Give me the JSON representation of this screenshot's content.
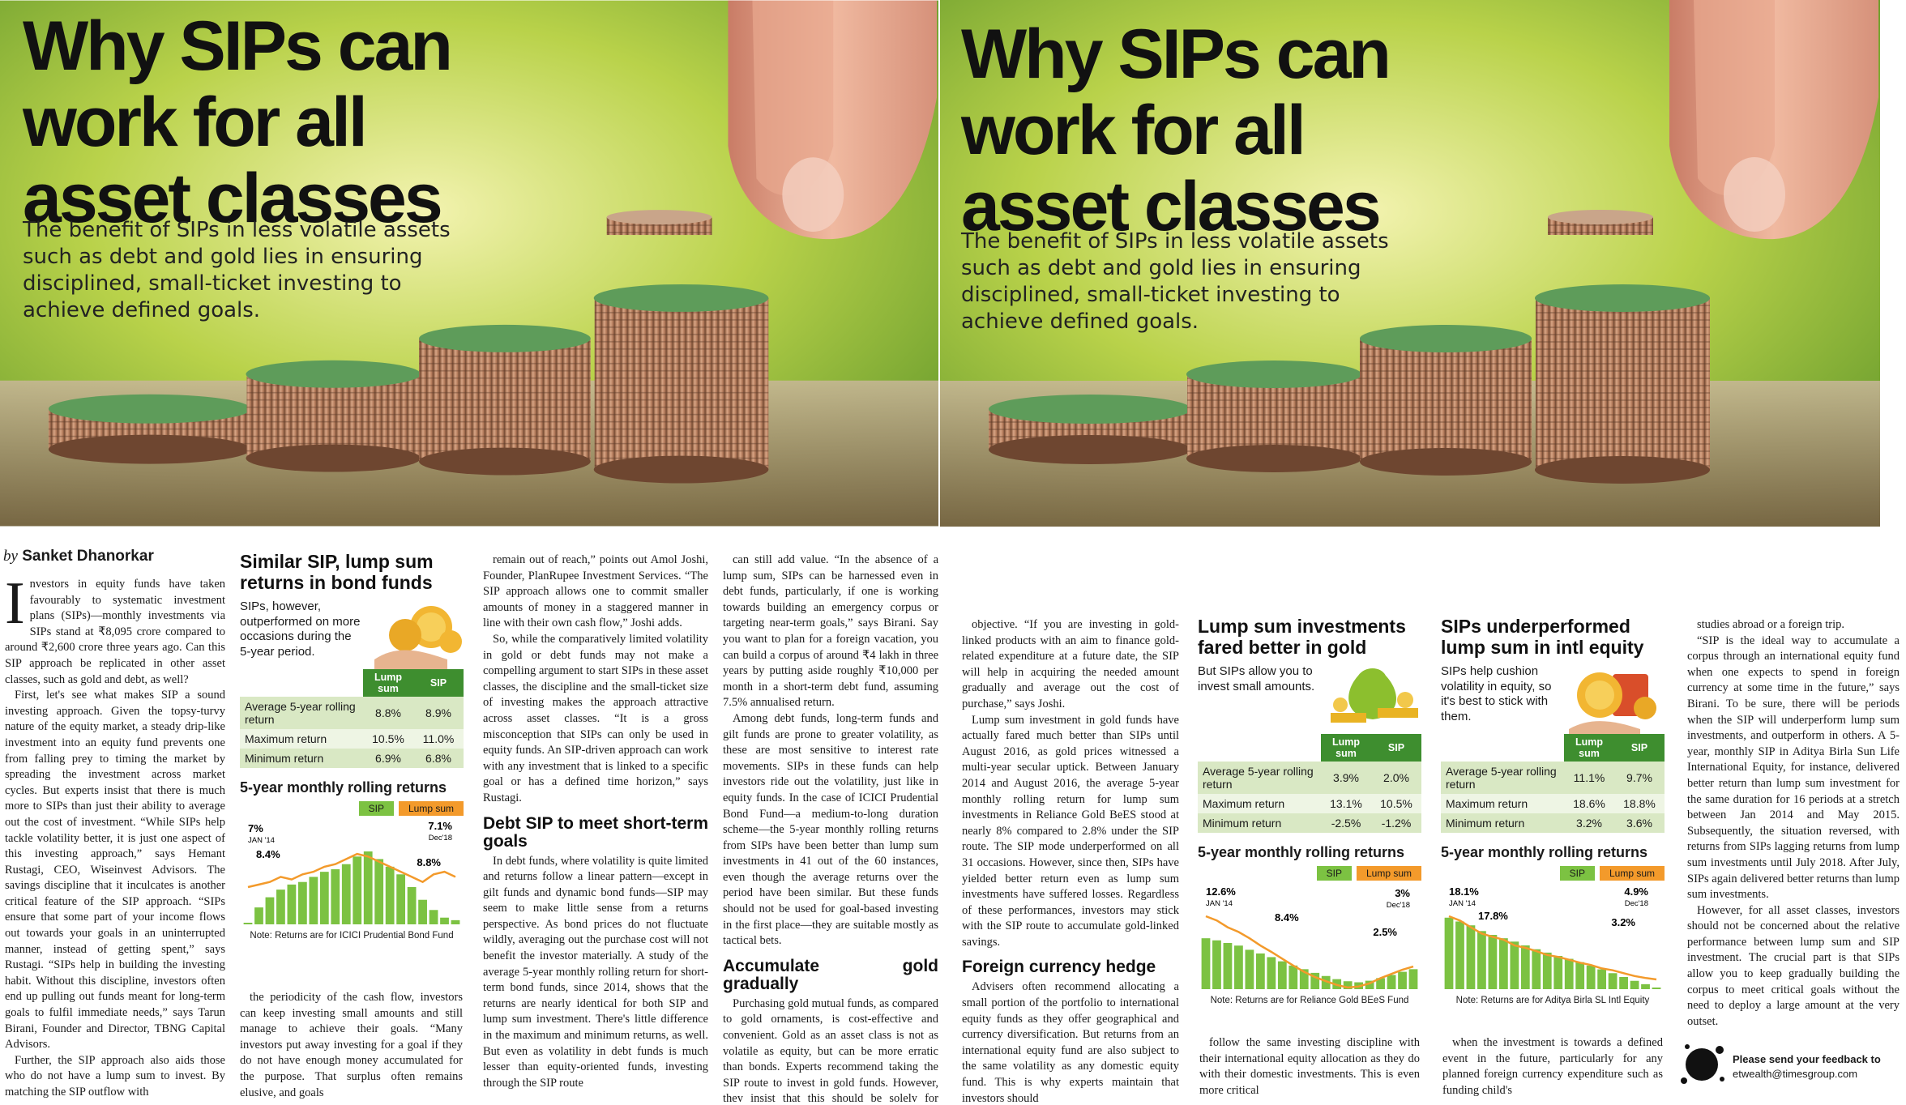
{
  "left_page": {
    "title": "Why SIPs can work for all asset classes",
    "subtitle": "The benefit of SIPs in less volatile assets such as debt and gold lies in ensuring disciplined, small-ticket investing to achieve defined goals.",
    "byline_prefix": "by",
    "author": "Sanket Dhanorkar",
    "columns": [
      [
        {
          "text": "Investors in equity funds have taken favourably to systematic investment plans (SIPs)—monthly investments via SIPs stand at ₹8,095 crore compared to around ₹2,600 crore three years ago. Can this SIP approach be replicated in other asset classes, such as gold and debt, as well?"
        },
        {
          "text": "First, let's see what makes SIP a sound investing approach. Given the topsy-turvy nature of the equity market, a steady drip-like investment into an equity fund prevents one from falling prey to timing the market by spreading the investment across market cycles. But experts insist that there is much more to SIPs than just their ability to average out the cost of investment. “While SIPs help tackle volatility better, it is just one aspect of this investing approach,” says Hemant Rustagi, CEO, Wiseinvest Advisors. The savings discipline that it inculcates is another critical feature of the SIP approach. “SIPs ensure that some part of your income flows out towards your goals in an uninterrupted manner, instead of getting spent,” says Rustagi. “SIPs help in building the investing habit. Without this discipline, investors often end up pulling out funds meant for long-term goals to fulfil immediate needs,” says Tarun Birani, Founder and Director, TBNG Capital Advisors."
        },
        {
          "text": "Further, the SIP approach also aids those who do not have a lump sum to invest. By matching the SIP outflow with"
        }
      ],
      [
        {
          "text": "the periodicity of the cash flow, investors can keep investing small amounts and still manage to achieve their goals. “Many investors put away investing for a goal if they do not have enough money accumulated for the purpose. That surplus often remains elusive, and goals"
        }
      ],
      [
        {
          "text": "remain out of reach,” points out Amol Joshi, Founder, PlanRupee Investment Services. “The SIP approach allows one to commit smaller amounts of money in a staggered manner in line with their own cash flow,” Joshi adds."
        },
        {
          "text": "So, while the comparatively limited volatility in gold or debt funds may not make a compelling argument to start SIPs in these asset classes, the discipline and the small-ticket size of investing makes the approach attractive across asset classes. “It is a gross misconception that SIPs can only be used in equity funds. An SIP-driven approach can work with any investment that is linked to a specific goal or has a defined time horizon,” says Rustagi."
        },
        {
          "heading": "Debt SIP to meet short-term goals"
        },
        {
          "text": "In debt funds, where volatility is quite limited and returns follow a linear pattern—except in gilt funds and dynamic bond funds—SIP may seem to make little sense from a returns perspective. As bond prices do not fluctuate wildly, averaging out the purchase cost will not benefit the investor materially. A study of the average 5-year monthly rolling return for short-term bond funds, since 2014, shows that the returns are nearly identical for both SIP and lump sum investment. There's little difference in the maximum and minimum returns, as well. But even as volatility in debt funds is much lesser than equity-oriented funds, investing through the SIP route"
        }
      ],
      [
        {
          "text": "can still add value. “In the absence of a lump sum, SIPs can be harnessed even in debt funds, particularly, if one is working towards building an emergency corpus or targeting near-term goals,” says Birani. Say you want to plan for a foreign vacation, you can build a corpus of around ₹4 lakh in three years by putting aside roughly ₹10,000 per month in a short-term debt fund, assuming 7.5% annualised return."
        },
        {
          "text": "Among debt funds, long-term funds and gilt funds are prone to greater volatility, as these are most sensitive to interest rate movements. SIPs in these funds can help investors ride out the volatility, just like in equity funds. In the case of ICICI Prudential Bond Fund—a medium-to-long duration scheme—the 5-year monthly rolling returns from SIPs have been better than lump sum investments in 41 out of the 60 instances, even though the average returns over the period have been similar. But these funds should not be used for goal-based investing in the first place—they are suitable mostly as tactical bets."
        },
        {
          "heading": "Accumulate gold gradually"
        },
        {
          "text": "Purchasing gold mutual funds, as compared to gold ornaments, is cost-effective and convenient. Gold as an asset class is not as volatile as equity, but can be more erratic than bonds. Experts recommend taking the SIP route to invest in gold funds. However, they insist that this should be solely for consumption purpose and not with an investment"
        }
      ]
    ],
    "boxes": [
      {
        "title": "Similar SIP, lump sum returns in bond funds",
        "subtitle": "SIPs, however, outperformed on more occasions during the 5-year period.",
        "table": {
          "header": [
            "Lump sum",
            "SIP"
          ],
          "rows": [
            [
              "Average 5-year rolling return",
              "8.8%",
              "8.9%"
            ],
            [
              "Maximum return",
              "10.5%",
              "11.0%"
            ],
            [
              "Minimum return",
              "6.9%",
              "6.8%"
            ]
          ]
        },
        "chart": {
          "type": "line",
          "title": "5-year monthly rolling returns",
          "series": [
            {
              "name": "SIP",
              "color": "#7cc242",
              "values": [
                7.0,
                7.6,
                8.0,
                8.3,
                8.5,
                8.6,
                8.8,
                9.0,
                9.1,
                9.3,
                9.6,
                9.8,
                9.5,
                9.2,
                8.9,
                8.4,
                7.9,
                7.5,
                7.2,
                7.1
              ]
            },
            {
              "name": "Lump sum",
              "color": "#f39a2b",
              "values": [
                8.4,
                8.5,
                8.6,
                8.8,
                8.7,
                8.9,
                9.0,
                9.2,
                9.3,
                9.5,
                9.7,
                9.6,
                9.4,
                9.2,
                9.0,
                8.8,
                8.6,
                8.9,
                9.0,
                8.8
              ]
            }
          ],
          "annotations": [
            "7%",
            "JAN '14",
            "8.4%",
            "7.1%",
            "Dec'18",
            "8.8%"
          ],
          "note": "Note: Returns are for ICICI Prudential Bond Fund"
        }
      }
    ]
  },
  "right_page": {
    "title": "Why SIPs can work for all asset classes",
    "subtitle": "The benefit of SIPs in less volatile assets such as debt and gold lies in ensuring disciplined, small-ticket investing to achieve defined goals.",
    "columns": [
      [
        {
          "text": "objective. “If you are investing in gold-linked products with an aim to finance gold-related expenditure at a future date, the SIP will help in acquiring the needed amount gradually and average out the cost of purchase,” says Joshi."
        },
        {
          "text": "Lump sum investment in gold funds have actually fared much better than SIPs until August 2016, as gold prices witnessed a multi-year secular uptick. Between January 2014 and August 2016, the average 5-year monthly rolling return for lump sum investments in Reliance Gold BeES stood at nearly 8% compared to 2.8% under the SIP route. The SIP mode underperformed on all 31 occasions. However, since then, SIPs have yielded better return even as lump sum investments have suffered losses. Regardless of these performances, investors may stick with the SIP route to accumulate gold-linked savings."
        },
        {
          "heading": "Foreign currency hedge"
        },
        {
          "text": "Advisers often recommend allocating a small portion of the portfolio to international equity funds as they offer geographical and currency diversification. But returns from an international equity fund are also subject to the same volatility as any domestic equity fund. This is why experts maintain that investors should"
        }
      ],
      [
        {
          "text": "follow the same investing discipline with their international equity allocation as they do with their domestic investments. This is even more critical"
        }
      ],
      [
        {
          "text": "when the investment is towards a defined event in the future, particularly for any planned foreign currency expenditure such as funding child's"
        }
      ],
      [
        {
          "text": "studies abroad or a foreign trip."
        },
        {
          "text": "“SIP is the ideal way to accumulate a corpus through an international equity fund when one expects to spend in foreign currency at some time in the future,” says Birani. To be sure, there will be periods when the SIP will underperform lump sum investments, and outperform in others. A 5-year, monthly SIP in Aditya Birla Sun Life International Equity, for instance, delivered better return than lump sum investment for the same duration for 16 periods at a stretch between Jan 2014 and May 2015. Subsequently, the situation reversed, with returns from SIPs lagging returns from lump sum investments until July 2018. After July, SIPs again delivered better returns than lump sum investments."
        },
        {
          "text": "However, for all asset classes, investors should not be concerned about the relative performance between lump sum and SIP investment. The crucial part is that SIPs allow you to keep gradually building the corpus to meet critical goals without the need to deploy a large amount at the very outset."
        }
      ]
    ],
    "boxes": [
      {
        "title": "Lump sum investments fared better in gold",
        "subtitle": "But SIPs allow you to invest small amounts.",
        "table": {
          "header": [
            "Lump sum",
            "SIP"
          ],
          "rows": [
            [
              "Average 5-year rolling return",
              "3.9%",
              "2.0%"
            ],
            [
              "Maximum return",
              "13.1%",
              "10.5%"
            ],
            [
              "Minimum return",
              "-2.5%",
              "-1.2%"
            ]
          ]
        },
        "chart": {
          "type": "line",
          "title": "5-year monthly rolling returns",
          "series": [
            {
              "name": "SIP",
              "color": "#7cc242",
              "values": [
                8.4,
                8.0,
                7.5,
                7.0,
                6.2,
                5.5,
                4.8,
                4.0,
                3.2,
                2.5,
                1.8,
                1.2,
                0.6,
                0.2,
                0.0,
                0.3,
                0.8,
                1.4,
                2.0,
                2.5
              ]
            },
            {
              "name": "Lump sum",
              "color": "#f39a2b",
              "values": [
                12.6,
                11.8,
                10.5,
                9.6,
                8.4,
                7.0,
                5.8,
                4.5,
                3.2,
                2.0,
                1.0,
                0.2,
                -0.5,
                -1.0,
                -0.8,
                -0.2,
                0.8,
                1.6,
                2.4,
                3.0
              ]
            }
          ],
          "annotations": [
            "12.6%",
            "JAN '14",
            "8.4%",
            "3%",
            "Dec'18",
            "2.5%"
          ],
          "note": "Note: Returns are for Reliance Gold BEeS Fund"
        }
      },
      {
        "title": "SIPs underperformed lump sum in intl equity",
        "subtitle": "SIPs help cushion volatility in equity, so it's best to stick with them.",
        "table": {
          "header": [
            "Lump sum",
            "SIP"
          ],
          "rows": [
            [
              "Average 5-year rolling return",
              "11.1%",
              "9.7%"
            ],
            [
              "Maximum return",
              "18.6%",
              "18.8%"
            ],
            [
              "Minimum return",
              "3.2%",
              "3.6%"
            ]
          ]
        },
        "chart": {
          "type": "line",
          "title": "5-year monthly rolling returns",
          "series": [
            {
              "name": "SIP",
              "color": "#7cc242",
              "values": [
                17.8,
                17.0,
                16.2,
                15.0,
                14.2,
                13.5,
                12.8,
                12.0,
                11.2,
                10.5,
                9.8,
                9.2,
                8.5,
                7.8,
                7.0,
                6.2,
                5.4,
                4.6,
                3.9,
                3.2
              ]
            },
            {
              "name": "Lump sum",
              "color": "#f39a2b",
              "values": [
                18.1,
                17.2,
                15.8,
                14.5,
                13.8,
                13.2,
                12.0,
                11.5,
                10.8,
                10.0,
                9.6,
                9.0,
                8.4,
                7.9,
                7.2,
                6.8,
                6.2,
                5.6,
                5.2,
                4.9
              ]
            }
          ],
          "annotations": [
            "18.1%",
            "JAN '14",
            "17.8%",
            "4.9%",
            "Dec'18",
            "3.2%"
          ],
          "note": "Note: Returns are for Aditya Birla SL Intl Equity"
        }
      }
    ],
    "feedback": {
      "label": "Please send your feedback to",
      "email": "etwealth@timesgroup.com"
    }
  }
}
